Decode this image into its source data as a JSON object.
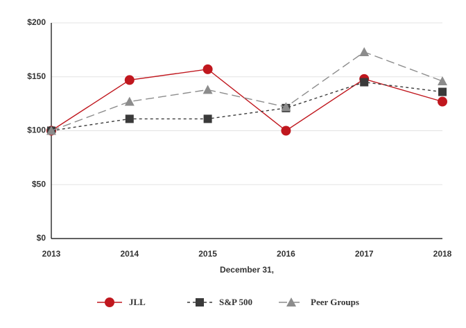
{
  "chart_data": {
    "type": "line",
    "xlabel": "December 31,",
    "categories": [
      "2013",
      "2014",
      "2015",
      "2016",
      "2017",
      "2018"
    ],
    "series": [
      {
        "name": "JLL",
        "color": "#c0171e",
        "marker": "circle",
        "line_style": "solid",
        "values": [
          100,
          147,
          157,
          100,
          148,
          127
        ]
      },
      {
        "name": "S&P 500",
        "color": "#3a3a3a",
        "marker": "square",
        "line_style": "dashed",
        "values": [
          100,
          111,
          111,
          121,
          145,
          136
        ]
      },
      {
        "name": "Peer Groups",
        "color": "#8c8c8c",
        "marker": "triangle",
        "line_style": "long-dashed",
        "values": [
          100,
          127,
          138,
          122,
          173,
          146
        ]
      }
    ],
    "ylim": [
      0,
      200
    ],
    "yticks": [
      {
        "value": 0,
        "label": "$0"
      },
      {
        "value": 50,
        "label": "$50"
      },
      {
        "value": 100,
        "label": "$100"
      },
      {
        "value": 150,
        "label": "$150"
      },
      {
        "value": 200,
        "label": "$200"
      }
    ],
    "grid": true,
    "legend": "bottom"
  }
}
